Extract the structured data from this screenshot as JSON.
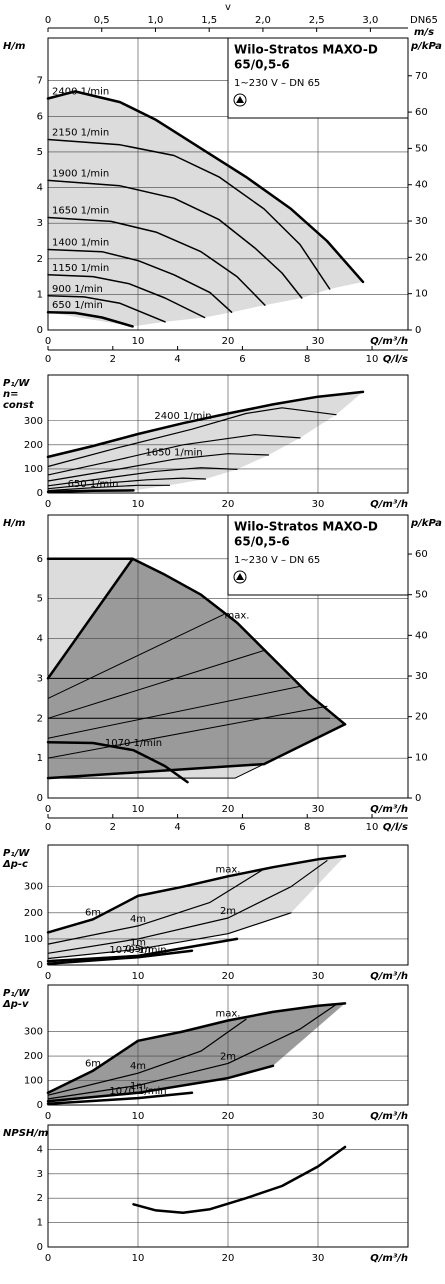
{
  "chart_data": [
    {
      "type": "line",
      "title": [
        "Wilo-Stratos MAXO-D",
        "65/0,5-6"
      ],
      "subtitle": "1~230 V – DN 65",
      "y_label": [
        "H/m"
      ],
      "y2_label": "p/kPa",
      "x_label": "Q/m³/h",
      "xlim": [
        0,
        40
      ],
      "xticks": [
        0,
        10,
        20,
        30
      ],
      "ylim": [
        0,
        8.2
      ],
      "yticks": [
        0,
        1,
        2,
        3,
        4,
        5,
        6,
        7
      ],
      "y2lim": [
        0,
        80.4
      ],
      "y2ticks": [
        0,
        10,
        20,
        30,
        40,
        50,
        60,
        70
      ],
      "x2lim": [
        0,
        11.11
      ],
      "x2ticks": [
        0,
        2,
        4,
        6,
        8,
        10
      ],
      "x2_label": "Q/l/s",
      "v_label": "v",
      "v_unit": "m/s",
      "v_note": "DN65",
      "vlim": [
        0,
        3.35
      ],
      "vticks": [
        0,
        {
          "value": 0.5,
          "label": "0,5"
        },
        {
          "value": 1.0,
          "label": "1,0"
        },
        {
          "value": 1.5,
          "label": "1,5"
        },
        {
          "value": 2.0,
          "label": "2,0"
        },
        {
          "value": 2.5,
          "label": "2,5"
        },
        {
          "value": 3.0,
          "label": "3,0"
        }
      ],
      "grid": true,
      "line_color": "#000000",
      "fill_colors": [
        "#dcdcdc"
      ],
      "series": [
        {
          "name": "2400 1/min",
          "width": 2.5,
          "x": [
            0,
            3,
            8,
            12,
            17,
            22,
            27,
            31,
            35
          ],
          "values": [
            6.5,
            6.7,
            6.4,
            5.9,
            5.1,
            4.3,
            3.4,
            2.5,
            1.35
          ]
        },
        {
          "name": "2150 1/min",
          "width": 1.5,
          "x": [
            0,
            8,
            14,
            19,
            24,
            28,
            31.3
          ],
          "values": [
            5.35,
            5.2,
            4.9,
            4.3,
            3.4,
            2.4,
            1.15
          ]
        },
        {
          "name": "1900 1/min",
          "width": 1.5,
          "x": [
            0,
            8,
            14,
            19,
            23,
            26,
            28.2
          ],
          "values": [
            4.2,
            4.05,
            3.7,
            3.1,
            2.3,
            1.6,
            0.9
          ]
        },
        {
          "name": "1650 1/min",
          "width": 1.5,
          "x": [
            0,
            7,
            12,
            17,
            21,
            24.1
          ],
          "values": [
            3.16,
            3.05,
            2.75,
            2.2,
            1.5,
            0.7
          ]
        },
        {
          "name": "1400 1/min",
          "width": 1.5,
          "x": [
            0,
            6,
            10,
            14,
            18,
            20.4
          ],
          "values": [
            2.26,
            2.2,
            1.95,
            1.55,
            1.05,
            0.5
          ]
        },
        {
          "name": "1150 1/min",
          "width": 1.5,
          "x": [
            0,
            5,
            9,
            13,
            17.4
          ],
          "values": [
            1.55,
            1.5,
            1.3,
            0.9,
            0.35
          ]
        },
        {
          "name": "900 1/min",
          "width": 1.5,
          "x": [
            0,
            4,
            8,
            13
          ],
          "values": [
            0.96,
            0.93,
            0.75,
            0.23
          ]
        },
        {
          "name": "650 1/min",
          "width": 2.5,
          "x": [
            0,
            3,
            6,
            9.4
          ],
          "values": [
            0.5,
            0.48,
            0.35,
            0.1
          ]
        }
      ]
    },
    {
      "type": "line",
      "y_label": [
        "P₁/W",
        "n=",
        "const"
      ],
      "x_label": "Q/m³/h",
      "xlim": [
        0,
        40
      ],
      "xticks": [
        0,
        10,
        20,
        30
      ],
      "ylim": [
        0,
        490
      ],
      "yticks": [
        0,
        100,
        200,
        300
      ],
      "grid": true,
      "line_color": "#000000",
      "fill_colors": [
        "#dcdcdc"
      ],
      "series": [
        {
          "name": "2400 1/min",
          "width": 2.5,
          "x": [
            0,
            5,
            10,
            15,
            20,
            25,
            30,
            35
          ],
          "values": [
            150,
            195,
            245,
            290,
            330,
            368,
            400,
            420
          ]
        },
        {
          "width": 1.2,
          "x": [
            0,
            8,
            16,
            22,
            26,
            32
          ],
          "values": [
            110,
            190,
            265,
            330,
            354,
            325
          ]
        },
        {
          "width": 1.2,
          "x": [
            0,
            8,
            15,
            23,
            28
          ],
          "values": [
            75,
            140,
            200,
            242,
            229
          ]
        },
        {
          "name": "1650 1/min",
          "width": 1.2,
          "x": [
            0,
            8,
            14,
            20,
            24.5
          ],
          "values": [
            50,
            100,
            140,
            163,
            158
          ]
        },
        {
          "width": 1.2,
          "x": [
            0,
            6,
            12,
            17,
            21
          ],
          "values": [
            30,
            60,
            90,
            105,
            98
          ]
        },
        {
          "width": 1.2,
          "x": [
            0,
            6,
            11,
            15,
            17.5
          ],
          "values": [
            18,
            40,
            55,
            62,
            58
          ]
        },
        {
          "width": 1.2,
          "x": [
            0,
            5,
            10,
            13.5
          ],
          "values": [
            10,
            22,
            32,
            32
          ]
        },
        {
          "name": "650 1/min",
          "width": 2.5,
          "x": [
            0,
            5,
            9.5
          ],
          "values": [
            5,
            9,
            11
          ]
        }
      ]
    },
    {
      "type": "line",
      "title": [
        "Wilo-Stratos MAXO-D",
        "65/0,5-6"
      ],
      "subtitle": "1~230 V – DN 65",
      "y_label": [
        "H/m"
      ],
      "y2_label": "p/kPa",
      "x_label": "Q/m³/h",
      "xlim": [
        0,
        40
      ],
      "xticks": [
        0,
        10,
        20,
        30
      ],
      "ylim": [
        0,
        7.1
      ],
      "yticks": [
        0,
        1,
        2,
        3,
        4,
        5,
        6
      ],
      "y2lim": [
        0,
        69.6
      ],
      "y2ticks": [
        0,
        10,
        20,
        30,
        40,
        50,
        60
      ],
      "x2lim": [
        0,
        11.11
      ],
      "x2ticks": [
        0,
        2,
        4,
        6,
        8,
        10
      ],
      "x2_label": "Q/l/s",
      "grid": true,
      "line_color": "#000000",
      "fill_colors": [
        "#dcdcdc",
        "#9a9a9a"
      ],
      "series": [
        {
          "name": "max.",
          "width": 2.5,
          "x": [
            9.4,
            13,
            17,
            21,
            25,
            29,
            33
          ],
          "values": [
            6,
            5.6,
            5.1,
            4.4,
            3.5,
            2.6,
            1.85
          ]
        },
        {
          "width": 2.5,
          "x": [
            0,
            9.4
          ],
          "values": [
            6,
            6
          ]
        },
        {
          "width": 2.5,
          "x": [
            0,
            9.4
          ],
          "values": [
            3,
            6
          ]
        },
        {
          "width": 1,
          "x": [
            0,
            26.8
          ],
          "values": [
            3,
            3
          ]
        },
        {
          "width": 1,
          "x": [
            0,
            31.3
          ],
          "values": [
            2,
            2
          ]
        },
        {
          "width": 1,
          "x": [
            0,
            19.5
          ],
          "values": [
            2.5,
            4.6
          ]
        },
        {
          "width": 1,
          "x": [
            0,
            24
          ],
          "values": [
            2,
            3.7
          ]
        },
        {
          "width": 1,
          "x": [
            0,
            28
          ],
          "values": [
            1.5,
            2.8
          ]
        },
        {
          "width": 1,
          "x": [
            0,
            31
          ],
          "values": [
            1,
            2.3
          ]
        },
        {
          "width": 2.5,
          "x": [
            0,
            24,
            33
          ],
          "values": [
            0.5,
            0.85,
            1.85
          ]
        },
        {
          "width": 1,
          "x": [
            0,
            20.8,
            24
          ],
          "values": [
            0.5,
            0.5,
            0.85
          ]
        },
        {
          "name": "1070 1/min",
          "width": 2.5,
          "x": [
            0,
            5,
            9.5,
            13,
            15.5
          ],
          "values": [
            1.4,
            1.38,
            1.2,
            0.8,
            0.4
          ]
        }
      ]
    },
    {
      "type": "line",
      "y_label": [
        "P₁/W",
        "Δp-c"
      ],
      "x_label": "Q/m³/h",
      "xlim": [
        0,
        40
      ],
      "xticks": [
        0,
        10,
        20,
        30
      ],
      "ylim": [
        0,
        460
      ],
      "yticks": [
        0,
        100,
        200,
        300
      ],
      "grid": true,
      "line_color": "#000000",
      "fill_colors": [
        "#dcdcdc"
      ],
      "series": [
        {
          "name": "6m",
          "width": 2.5,
          "x": [
            0,
            5,
            10
          ],
          "values": [
            125,
            175,
            265
          ]
        },
        {
          "name": "max.",
          "width": 2.5,
          "x": [
            10,
            15,
            20,
            25,
            30,
            33
          ],
          "values": [
            265,
            300,
            340,
            375,
            405,
            418
          ]
        },
        {
          "name": "4m",
          "width": 1.2,
          "x": [
            0,
            10,
            18,
            24
          ],
          "values": [
            80,
            150,
            240,
            368
          ]
        },
        {
          "name": "2m",
          "width": 1.2,
          "x": [
            0,
            10,
            20,
            27,
            31
          ],
          "values": [
            45,
            100,
            180,
            300,
            400
          ]
        },
        {
          "name": "1m",
          "width": 1.2,
          "x": [
            0,
            10,
            20,
            27
          ],
          "values": [
            25,
            60,
            120,
            200
          ]
        },
        {
          "name": "0,5m",
          "width": 2.5,
          "x": [
            0,
            10,
            21
          ],
          "values": [
            15,
            35,
            100
          ]
        },
        {
          "name": "1070 1/min",
          "width": 2.5,
          "x": [
            0,
            10,
            16
          ],
          "values": [
            5,
            30,
            55
          ]
        }
      ]
    },
    {
      "type": "line",
      "y_label": [
        "P₁/W",
        "Δp-v"
      ],
      "x_label": "Q/m³/h",
      "xlim": [
        0,
        40
      ],
      "xticks": [
        0,
        10,
        20,
        30
      ],
      "ylim": [
        0,
        490
      ],
      "yticks": [
        0,
        100,
        200,
        300
      ],
      "grid": true,
      "line_color": "#000000",
      "fill_colors": [
        "#9a9a9a"
      ],
      "series": [
        {
          "name": "6m",
          "width": 2.5,
          "x": [
            0,
            5,
            10
          ],
          "values": [
            50,
            140,
            262
          ]
        },
        {
          "name": "max.",
          "width": 2.5,
          "x": [
            10,
            15,
            20,
            25,
            30,
            33
          ],
          "values": [
            262,
            300,
            345,
            380,
            405,
            415
          ]
        },
        {
          "name": "4m",
          "width": 1.2,
          "x": [
            0,
            10,
            17,
            22
          ],
          "values": [
            40,
            130,
            220,
            350
          ]
        },
        {
          "name": "2m",
          "width": 1.2,
          "x": [
            0,
            10,
            20,
            28,
            32
          ],
          "values": [
            25,
            80,
            170,
            310,
            410
          ]
        },
        {
          "name": "1m",
          "width": 2.5,
          "x": [
            0,
            10,
            20,
            25
          ],
          "values": [
            15,
            50,
            110,
            160
          ]
        },
        {
          "name": "1070 1/min",
          "width": 2.5,
          "x": [
            0,
            10,
            16
          ],
          "values": [
            5,
            28,
            50
          ]
        }
      ]
    },
    {
      "type": "line",
      "y_label": [
        "NPSH/m"
      ],
      "x_label": "Q/m³/h",
      "xlim": [
        0,
        40
      ],
      "xticks": [
        0,
        10,
        20,
        30
      ],
      "ylim": [
        0,
        5
      ],
      "yticks": [
        0,
        1,
        2,
        3,
        4
      ],
      "grid": true,
      "line_color": "#000000",
      "series": [
        {
          "width": 2.5,
          "x": [
            9.5,
            12,
            15,
            18,
            22,
            26,
            30,
            33
          ],
          "values": [
            1.75,
            1.5,
            1.4,
            1.55,
            2,
            2.5,
            3.3,
            4.1
          ]
        }
      ]
    }
  ]
}
